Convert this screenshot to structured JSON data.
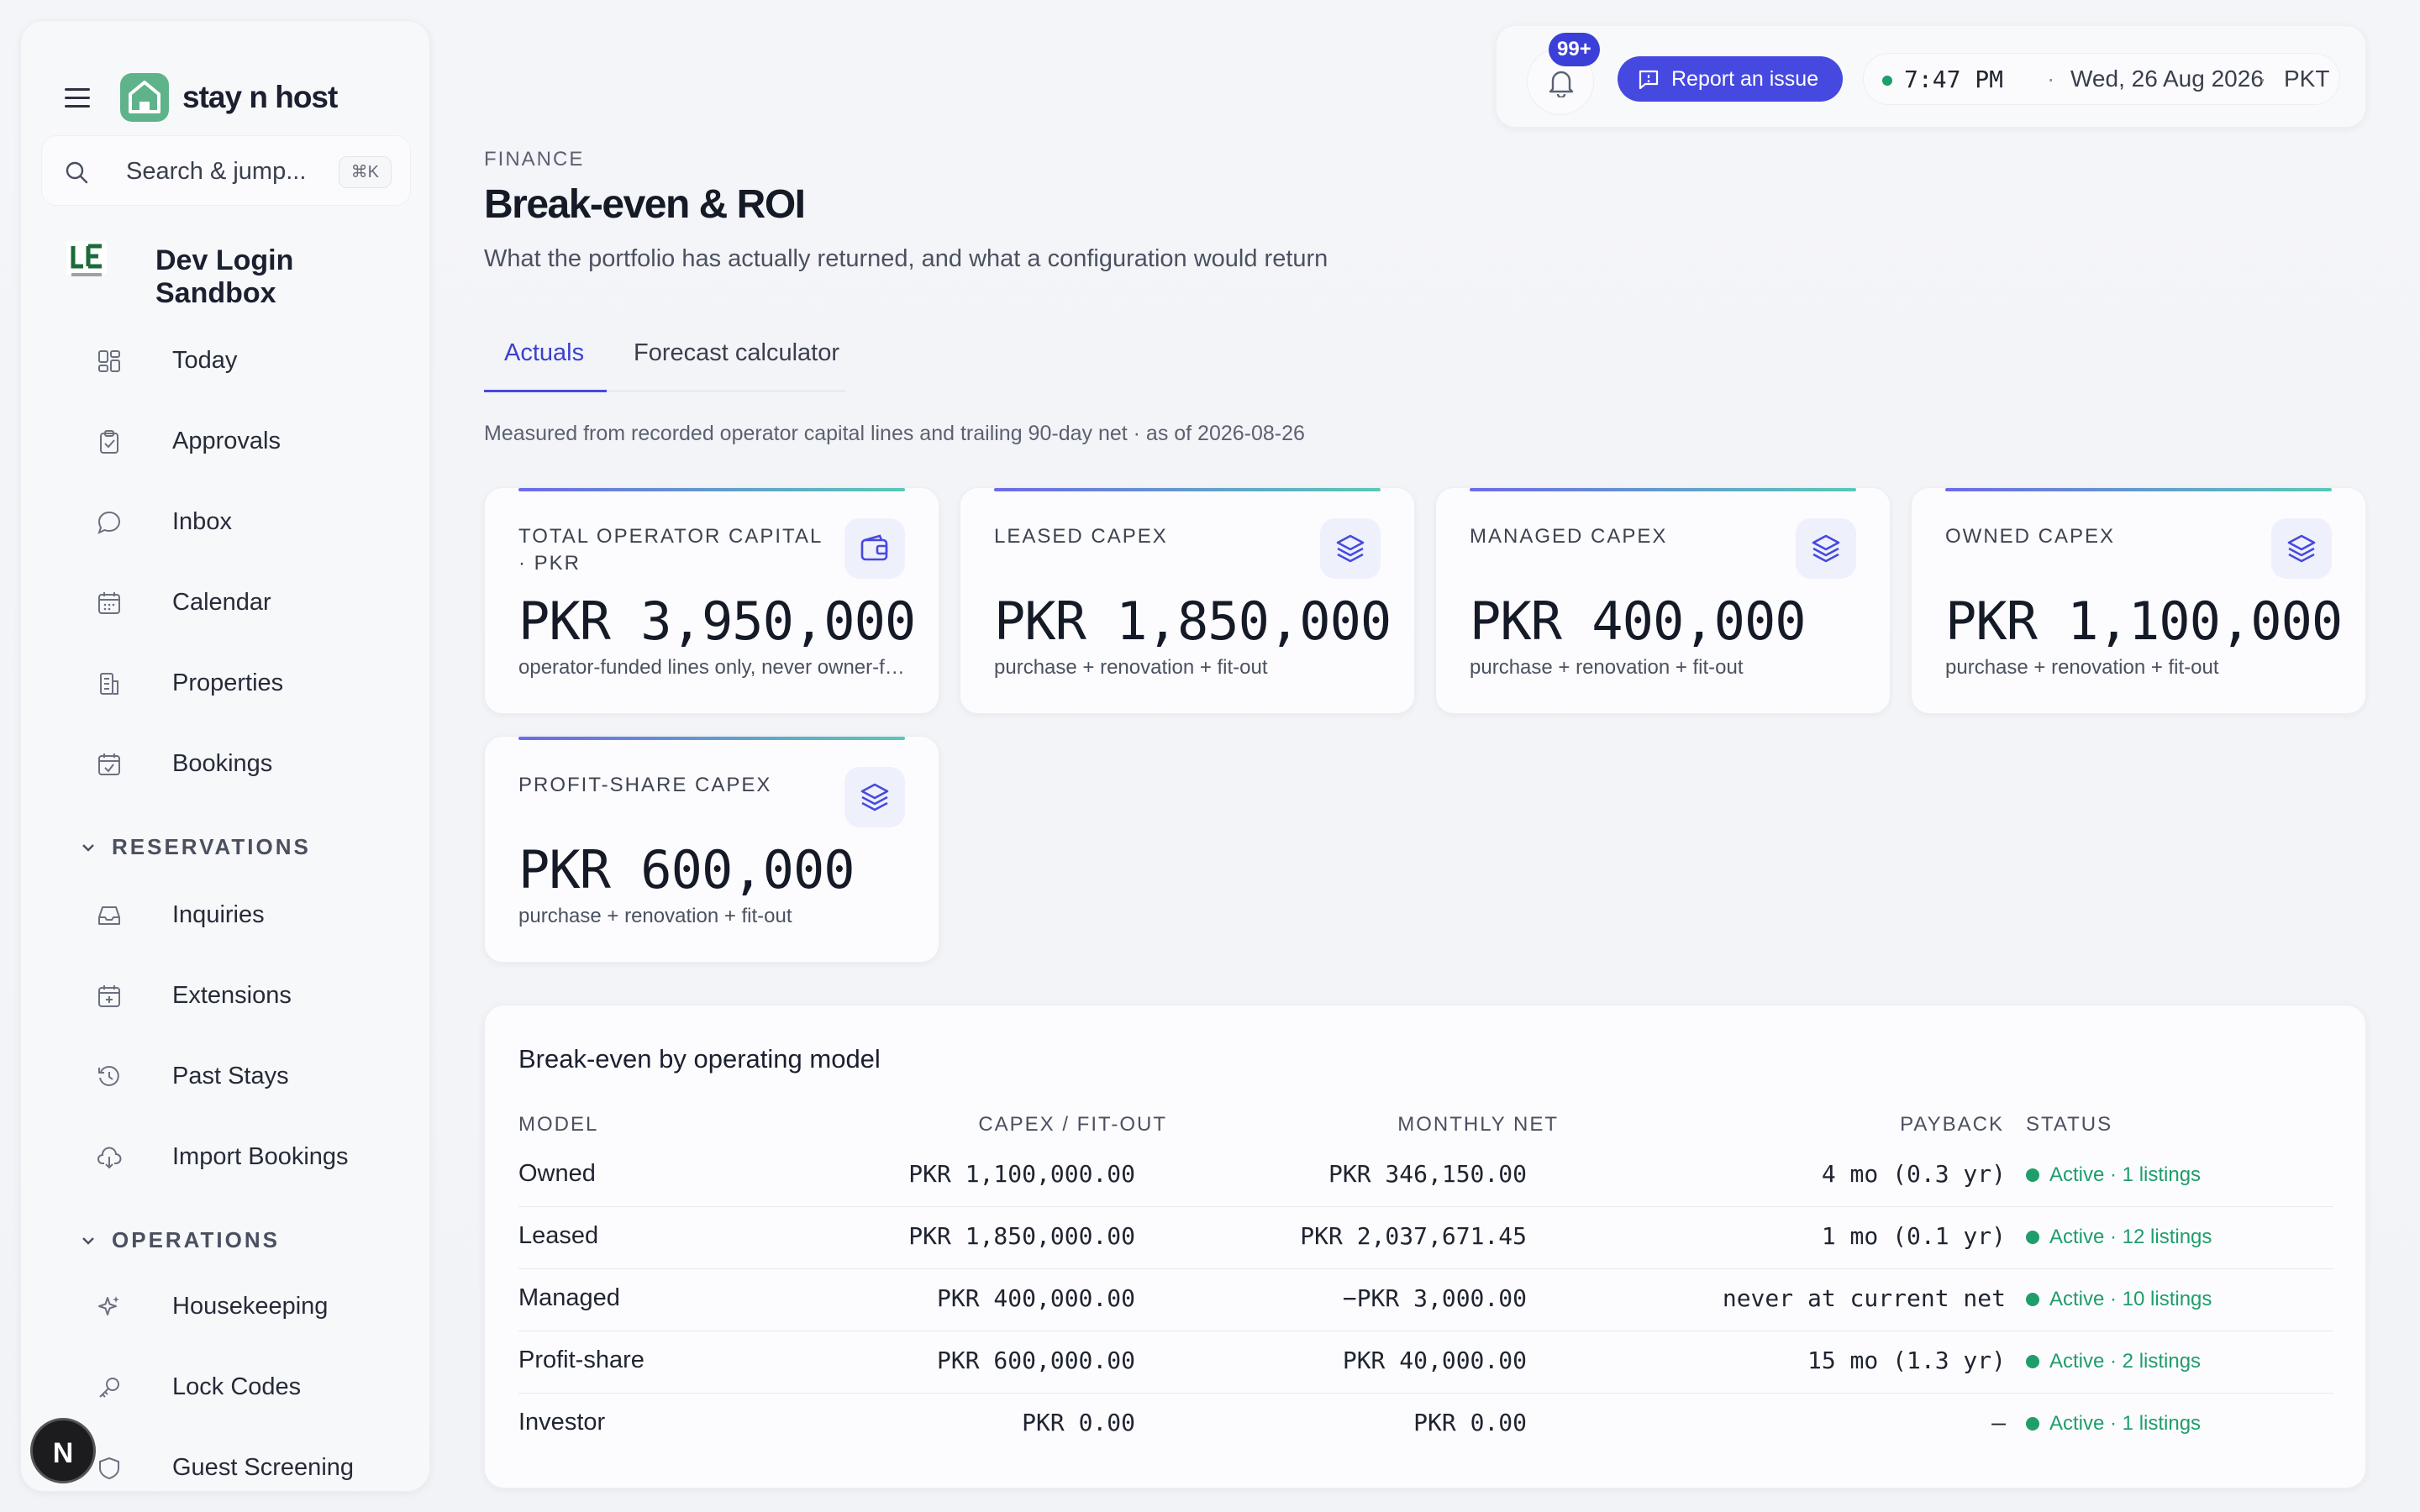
{
  "app": {
    "brand": "stay n host"
  },
  "search": {
    "placeholder": "Search & jump...",
    "shortcut": "⌘K"
  },
  "org": {
    "name": "Dev Login Sandbox"
  },
  "sidebar": {
    "items": [
      {
        "label": "Today",
        "icon": "grid-icon"
      },
      {
        "label": "Approvals",
        "icon": "clipboard-check-icon"
      },
      {
        "label": "Inbox",
        "icon": "chat-bubble-icon"
      },
      {
        "label": "Calendar",
        "icon": "calendar-icon"
      },
      {
        "label": "Properties",
        "icon": "building-icon"
      },
      {
        "label": "Bookings",
        "icon": "calendar-check-icon"
      }
    ],
    "sections": [
      {
        "label": "RESERVATIONS",
        "items": [
          {
            "label": "Inquiries",
            "icon": "inbox-tray-icon"
          },
          {
            "label": "Extensions",
            "icon": "calendar-plus-icon"
          },
          {
            "label": "Past Stays",
            "icon": "history-icon"
          },
          {
            "label": "Import Bookings",
            "icon": "cloud-download-icon"
          }
        ]
      },
      {
        "label": "OPERATIONS",
        "items": [
          {
            "label": "Housekeeping",
            "icon": "sparkles-icon"
          },
          {
            "label": "Lock Codes",
            "icon": "key-icon"
          },
          {
            "label": "Guest Screening",
            "icon": "shield-icon"
          }
        ]
      }
    ],
    "avatar": "N"
  },
  "topbar": {
    "notifications": "99+",
    "report_label": "Report an issue",
    "time": "7:47 PM",
    "sep": "·",
    "date": "Wed, 26 Aug 2026",
    "tz": "PKT"
  },
  "header": {
    "eyebrow": "FINANCE",
    "title": "Break-even & ROI",
    "subtitle": "What the portfolio has actually returned, and what a configuration would return"
  },
  "tabs": [
    {
      "label": "Actuals",
      "active": true
    },
    {
      "label": "Forecast calculator",
      "active": false
    }
  ],
  "measured_note": "Measured from recorded operator capital lines and trailing 90-day net · as of 2026-08-26",
  "cards": [
    {
      "label": "TOTAL OPERATOR CAPITAL · PKR",
      "value": "PKR 3,950,000",
      "sub": "operator-funded lines only, never owner-funded",
      "icon": "wallet-icon"
    },
    {
      "label": "LEASED CAPEX",
      "value": "PKR 1,850,000",
      "sub": "purchase + renovation + fit-out",
      "icon": "layers-icon"
    },
    {
      "label": "MANAGED CAPEX",
      "value": "PKR 400,000",
      "sub": "purchase + renovation + fit-out",
      "icon": "layers-icon"
    },
    {
      "label": "OWNED CAPEX",
      "value": "PKR 1,100,000",
      "sub": "purchase + renovation + fit-out",
      "icon": "layers-icon"
    },
    {
      "label": "PROFIT-SHARE CAPEX",
      "value": "PKR 600,000",
      "sub": "purchase + renovation + fit-out",
      "icon": "layers-icon"
    }
  ],
  "table": {
    "title": "Break-even by operating model",
    "columns": [
      "MODEL",
      "CAPEX / FIT-OUT",
      "MONTHLY NET",
      "PAYBACK",
      "STATUS"
    ],
    "rows": [
      {
        "model": "Owned",
        "capex": "PKR 1,100,000.00",
        "net": "PKR 346,150.00",
        "payback": "4 mo (0.3 yr)",
        "status": "Active · 1 listings"
      },
      {
        "model": "Leased",
        "capex": "PKR 1,850,000.00",
        "net": "PKR 2,037,671.45",
        "payback": "1 mo (0.1 yr)",
        "status": "Active · 12 listings"
      },
      {
        "model": "Managed",
        "capex": "PKR 400,000.00",
        "net": "−PKR 3,000.00",
        "payback": "never at current net",
        "status": "Active · 10 listings"
      },
      {
        "model": "Profit-share",
        "capex": "PKR 600,000.00",
        "net": "PKR 40,000.00",
        "payback": "15 mo (1.3 yr)",
        "status": "Active · 2 listings"
      },
      {
        "model": "Investor",
        "capex": "PKR 0.00",
        "net": "PKR 0.00",
        "payback": "—",
        "status": "Active · 1 listings"
      }
    ]
  },
  "colors": {
    "accent": "#4649e0",
    "brand": "#5fb38a",
    "success": "#1f9d6b"
  }
}
